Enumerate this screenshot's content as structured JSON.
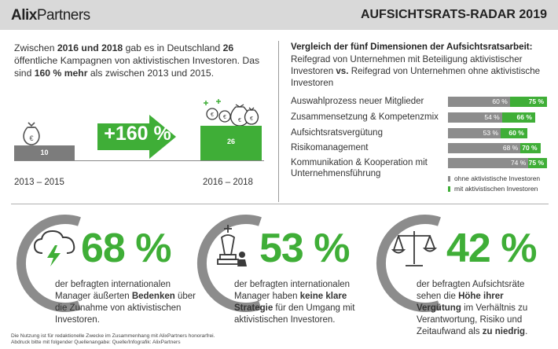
{
  "header": {
    "logo_bold": "Alix",
    "logo_light": "Partners",
    "title": "AUFSICHTSRATS-RADAR 2019"
  },
  "intro": {
    "t1": "Zwischen ",
    "b1": "2016 und 2018",
    "t2": " gab es in Deutschland ",
    "b2": "26",
    "t3": " öffentliche Kampagnen von aktivistischen Investoren.",
    "t4": "Das sind ",
    "b3": "160 % mehr",
    "t5": " als zwischen 2013 und 2015."
  },
  "growth": {
    "left_value": "10",
    "right_value": "26",
    "left_period": "2013 – 2015",
    "right_period": "2016 – 2018",
    "change": "+160 %",
    "bar_color_left": "#7c7c7c",
    "bar_color_right": "#3fae37"
  },
  "comparison": {
    "title": "Vergleich der fünf Dimensionen der Aufsichtsratsarbeit:",
    "sub1": "Reifegrad von Unternehmen mit Beteiligung aktivistischer Investoren ",
    "sub_bold": "vs.",
    "sub2": " Reifegrad von Unternehmen ohne aktivistische Investoren",
    "dimensions": [
      {
        "label": "Auswahlprozess neuer Mitglieder",
        "without": 60,
        "with": 75,
        "without_label": "60 %",
        "with_label": "75 %"
      },
      {
        "label": "Zusammensetzung & Kompetenzmix",
        "without": 54,
        "with": 66,
        "without_label": "54 %",
        "with_label": "66 %"
      },
      {
        "label": "Aufsichtsratsvergütung",
        "without": 53,
        "with": 60,
        "without_label": "53 %",
        "with_label": "60 %"
      },
      {
        "label": "Risikomanagement",
        "without": 68,
        "with": 70,
        "without_label": "68 %",
        "with_label": "70 %"
      },
      {
        "label": "Kommunikation & Kooperation mit Unternehmensführung",
        "without": 74,
        "with": 75,
        "without_label": "74 %",
        "with_label": "75 %"
      }
    ],
    "legend": [
      {
        "label": "ohne aktivistische Investoren",
        "color": "#8c8c8c"
      },
      {
        "label": "mit aktivistischen Investoren",
        "color": "#3fae37"
      }
    ]
  },
  "stats": [
    {
      "value": "68 %",
      "icon": "cloud-lightning-icon",
      "t1": "der befragten internationalen Manager äußerten ",
      "b1": "Bedenken",
      "t2": " über die Zunahme von aktivistischen Investoren.",
      "b2": "",
      "t3": ""
    },
    {
      "value": "53 %",
      "icon": "chess-king-icon",
      "t1": "der befragten internationalen Manager haben ",
      "b1": "keine klare Strategie",
      "t2": " für den Umgang mit aktivistischen Investoren.",
      "b2": "",
      "t3": ""
    },
    {
      "value": "42 %",
      "icon": "scales-icon",
      "t1": "der befragten Aufsichtsräte sehen die ",
      "b1": "Höhe ihrer Vergütung",
      "t2": " im Verhältnis zu Verantwortung, Risiko und Zeitaufwand als ",
      "b2": "zu niedrig",
      "t3": "."
    }
  ],
  "footer": {
    "line1": "Die Nutzung ist für redaktionelle Zwecke im Zusammenhang mit AlixPartners honorarfrei.",
    "line2": "Abdruck bitte mit folgender Quellenangabe: Quelle/Infografik: AlixPartners"
  },
  "colors": {
    "accent": "#3fae37",
    "grey": "#8c8c8c",
    "header": "#d9d9d9"
  }
}
